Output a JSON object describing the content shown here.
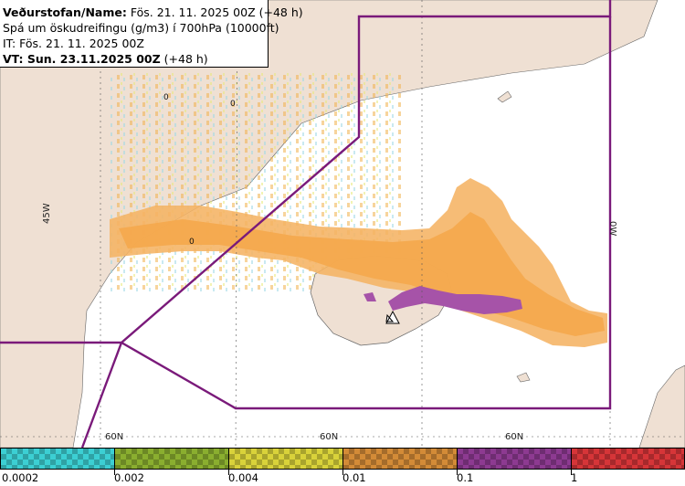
{
  "info": {
    "line1_label": "Veðurstofan/Name:",
    "line1_value": "Fös. 21. 11. 2025 00Z (+48 h)",
    "line2": "Spá um öskudreifingu (g/m3) í 700hPa (10000ft)",
    "line3": "IT: Fös. 21. 11. 2025 00Z",
    "line4_label": "VT: Sun. 23.11.2025 00Z",
    "line4_value": "(+48 h)"
  },
  "map": {
    "lon_labels": [
      "45W",
      "0W"
    ],
    "lat_labels": [
      "60N",
      "60N",
      "60N"
    ],
    "contour_labels": [
      "0",
      "0",
      "0"
    ],
    "volcano_icon": "volcano-triangle-icon",
    "colors": {
      "land": "#efe0d3",
      "sea": "#ffffff",
      "ash_low": "#f5b363",
      "ash_mid": "#f4a94e",
      "ash_high": "#a653a8",
      "boundary": "#7a1a7a"
    }
  },
  "legend": {
    "labels": [
      "0.0002",
      "0.002",
      "0.004",
      "0.01",
      "0.1",
      "1"
    ],
    "colors": [
      "#3ccfd3",
      "#8aae2f",
      "#d9d23a",
      "#d38b37",
      "#8d3a91",
      "#d63538"
    ]
  }
}
